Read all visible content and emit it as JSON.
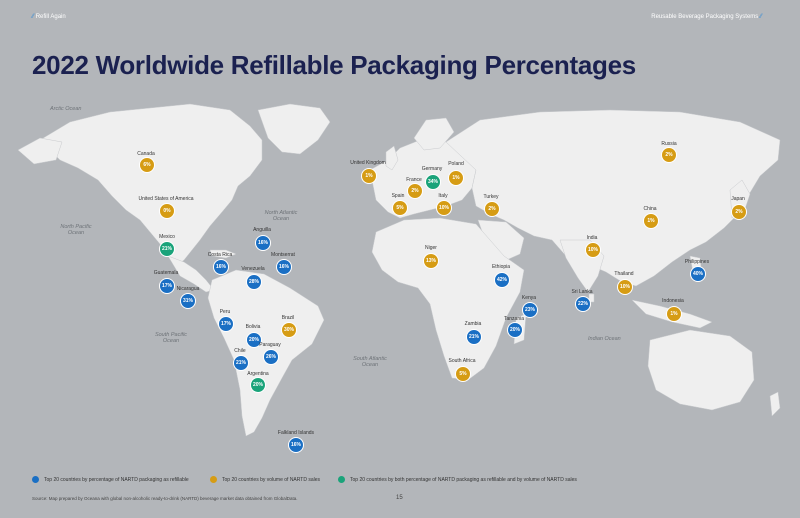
{
  "header": {
    "left": "Refill Again",
    "right": "Reusable Beverage Packaging Systems"
  },
  "title": "2022 Worldwide Refillable Packaging Percentages",
  "colors": {
    "background": "#b3b6ba",
    "land": "#efefef",
    "title": "#1b2150",
    "percentage": "#1a6fc4",
    "volume": "#d69c14",
    "both": "#1aa37a"
  },
  "ocean_labels": [
    {
      "text": "Arctic Ocean"
    },
    {
      "text": "North Pacific Ocean"
    },
    {
      "text": "North Atlantic Ocean"
    },
    {
      "text": "South Pacific Ocean"
    },
    {
      "text": "South Atlantic Ocean"
    },
    {
      "text": "Indian Ocean"
    }
  ],
  "countries": [
    {
      "name": "Canada",
      "value": "6%",
      "category": "volume"
    },
    {
      "name": "United States of America",
      "value": "0%",
      "category": "volume"
    },
    {
      "name": "Mexico",
      "value": "21%",
      "category": "both"
    },
    {
      "name": "Guatemala",
      "value": "17%",
      "category": "percentage"
    },
    {
      "name": "Nicaragua",
      "value": "31%",
      "category": "percentage"
    },
    {
      "name": "Costa Rica",
      "value": "16%",
      "category": "percentage"
    },
    {
      "name": "Anguilla",
      "value": "16%",
      "category": "percentage"
    },
    {
      "name": "Montserrat",
      "value": "16%",
      "category": "percentage"
    },
    {
      "name": "Venezuela",
      "value": "28%",
      "category": "percentage"
    },
    {
      "name": "Peru",
      "value": "17%",
      "category": "percentage"
    },
    {
      "name": "Bolivia",
      "value": "20%",
      "category": "percentage"
    },
    {
      "name": "Brazil",
      "value": "30%",
      "category": "volume"
    },
    {
      "name": "Paraguay",
      "value": "26%",
      "category": "percentage"
    },
    {
      "name": "Chile",
      "value": "21%",
      "category": "percentage"
    },
    {
      "name": "Argentina",
      "value": "20%",
      "category": "both"
    },
    {
      "name": "Falkland Islands",
      "value": "16%",
      "category": "percentage"
    },
    {
      "name": "United Kingdom",
      "value": "1%",
      "category": "volume"
    },
    {
      "name": "France",
      "value": "2%",
      "category": "volume"
    },
    {
      "name": "Germany",
      "value": "34%",
      "category": "both"
    },
    {
      "name": "Poland",
      "value": "1%",
      "category": "volume"
    },
    {
      "name": "Spain",
      "value": "5%",
      "category": "volume"
    },
    {
      "name": "Italy",
      "value": "10%",
      "category": "volume"
    },
    {
      "name": "Turkey",
      "value": "2%",
      "category": "volume"
    },
    {
      "name": "Russia",
      "value": "2%",
      "category": "volume"
    },
    {
      "name": "China",
      "value": "1%",
      "category": "volume"
    },
    {
      "name": "Japan",
      "value": "2%",
      "category": "volume"
    },
    {
      "name": "India",
      "value": "10%",
      "category": "volume"
    },
    {
      "name": "Niger",
      "value": "13%",
      "category": "volume"
    },
    {
      "name": "Ethiopia",
      "value": "42%",
      "category": "percentage"
    },
    {
      "name": "Kenya",
      "value": "23%",
      "category": "percentage"
    },
    {
      "name": "Tanzania",
      "value": "20%",
      "category": "percentage"
    },
    {
      "name": "Zambia",
      "value": "21%",
      "category": "percentage"
    },
    {
      "name": "South Africa",
      "value": "5%",
      "category": "volume"
    },
    {
      "name": "Sri Lanka",
      "value": "22%",
      "category": "percentage"
    },
    {
      "name": "Thailand",
      "value": "10%",
      "category": "volume"
    },
    {
      "name": "Philippines",
      "value": "40%",
      "category": "percentage"
    },
    {
      "name": "Indonesia",
      "value": "1%",
      "category": "volume"
    }
  ],
  "legend": [
    {
      "category": "percentage",
      "label": "Top 20 countries by percentage of NARTD packaging as refillable"
    },
    {
      "category": "volume",
      "label": "Top 20 countries by volume of NARTD sales"
    },
    {
      "category": "both",
      "label": "Top 20 countries by both percentage of NARTD packaging as refillable and by volume of NARTD sales"
    }
  ],
  "source": "Source: Map prepared by Oceana with global non-alcoholic ready-to-drink (NARTD) beverage market data obtained from GlobalData.",
  "page_number": "15"
}
